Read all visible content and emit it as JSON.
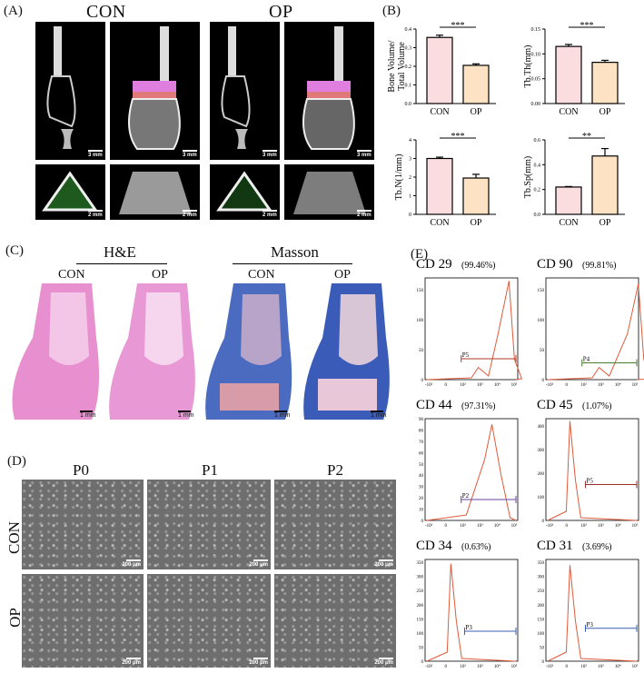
{
  "panel_labels": {
    "a": "(A)",
    "b": "(B)",
    "c": "(C)",
    "d": "(D)",
    "e": "(E)"
  },
  "panel_a": {
    "con": "CON",
    "op": "OP",
    "scale_3mm": "3 mm",
    "scale_2mm": "2 mm"
  },
  "panel_c": {
    "he": "H&E",
    "masson": "Masson",
    "con": "CON",
    "op": "OP",
    "scale": "1 mm"
  },
  "panel_d": {
    "p0": "P0",
    "p1": "P1",
    "p2": "P2",
    "row_con": "CON",
    "row_op": "OP",
    "scale": "200 μm"
  },
  "colors": {
    "con_bar": "#fbdde0",
    "op_bar": "#fde3c3",
    "he_pink": "#e88fcf",
    "masson_blue": "#4b6bc0",
    "flow_line": "#e05a3a"
  },
  "chart_data": [
    {
      "type": "bar",
      "categories": [
        "CON",
        "OP"
      ],
      "values": [
        0.355,
        0.205
      ],
      "errors": [
        0.012,
        0.008
      ],
      "ylabel": "Bone Volume/\nTotal Volume",
      "ylim": [
        0,
        0.4
      ],
      "yticks": [
        "0.0",
        "0.1",
        "0.2",
        "0.3",
        "0.4"
      ],
      "sig": "***"
    },
    {
      "type": "bar",
      "categories": [
        "CON",
        "OP"
      ],
      "values": [
        0.115,
        0.083
      ],
      "errors": [
        0.004,
        0.004
      ],
      "ylabel": "Tb.Th(mm)",
      "ylim": [
        0,
        0.15
      ],
      "yticks": [
        "0.00",
        "0.05",
        "0.10",
        "0.15"
      ],
      "sig": "***"
    },
    {
      "type": "bar",
      "categories": [
        "CON",
        "OP"
      ],
      "values": [
        3.0,
        1.95
      ],
      "errors": [
        0.07,
        0.2
      ],
      "ylabel": "Tb.N(1/mm)",
      "ylim": [
        0,
        4
      ],
      "yticks": [
        "0",
        "1",
        "2",
        "3",
        "4"
      ],
      "sig": "***"
    },
    {
      "type": "bar",
      "categories": [
        "CON",
        "OP"
      ],
      "values": [
        0.22,
        0.47
      ],
      "errors": [
        0.004,
        0.06
      ],
      "ylabel": "Tb.Sp(mm)",
      "ylim": [
        0,
        0.6
      ],
      "yticks": [
        "0.0",
        "0.2",
        "0.4",
        "0.6"
      ],
      "sig": "**"
    }
  ],
  "flow": [
    {
      "marker": "CD 29",
      "pct": "(99.46%)",
      "gate": "P5",
      "gate_color": "#b03a2e",
      "yticks": [
        "0",
        "50",
        "100",
        "150"
      ],
      "ymax": 170,
      "peak": [
        3.7,
        165
      ],
      "shape": "right",
      "gate_y": 35
    },
    {
      "marker": "CD 90",
      "pct": "(99.81%)",
      "gate": "P4",
      "gate_color": "#4a7d2e",
      "yticks": [
        "0",
        "50",
        "100",
        "150"
      ],
      "ymax": 170,
      "peak": [
        4.2,
        160
      ],
      "shape": "right",
      "gate_y": 28
    },
    {
      "marker": "CD 44",
      "pct": "(97.31%)",
      "gate": "P2",
      "gate_color": "#6a3fa0",
      "yticks": [
        "0",
        "10",
        "20",
        "30",
        "40",
        "50",
        "60",
        "70",
        "80",
        "90"
      ],
      "ymax": 90,
      "peak": [
        2.7,
        85
      ],
      "shape": "mid",
      "gate_y": 35
    },
    {
      "marker": "CD 45",
      "pct": "(1.07%)",
      "gate": "P5",
      "gate_color": "#9b2d2d",
      "yticks": [
        "0",
        "100",
        "200",
        "300",
        "400"
      ],
      "ymax": 430,
      "peak": [
        0.3,
        420
      ],
      "shape": "left",
      "gate_y": 60
    },
    {
      "marker": "CD 34",
      "pct": "(0.63%)",
      "gate": "P3",
      "gate_color": "#3a5fb0",
      "yticks": [
        "0",
        "50",
        "100",
        "150",
        "200",
        "250",
        "300",
        "350"
      ],
      "ymax": 360,
      "peak": [
        0.4,
        345
      ],
      "shape": "left",
      "gate_y": 50
    },
    {
      "marker": "CD 31",
      "pct": "(3.69%)",
      "gate": "P3",
      "gate_color": "#3a5fb0",
      "yticks": [
        "0",
        "50",
        "100",
        "150",
        "200",
        "250",
        "300",
        "350"
      ],
      "ymax": 360,
      "peak": [
        0.3,
        340
      ],
      "shape": "left",
      "gate_y": 55
    }
  ],
  "flow_xticks": [
    "-10²",
    "0",
    "10²",
    "10³",
    "10⁴",
    "10⁵"
  ]
}
